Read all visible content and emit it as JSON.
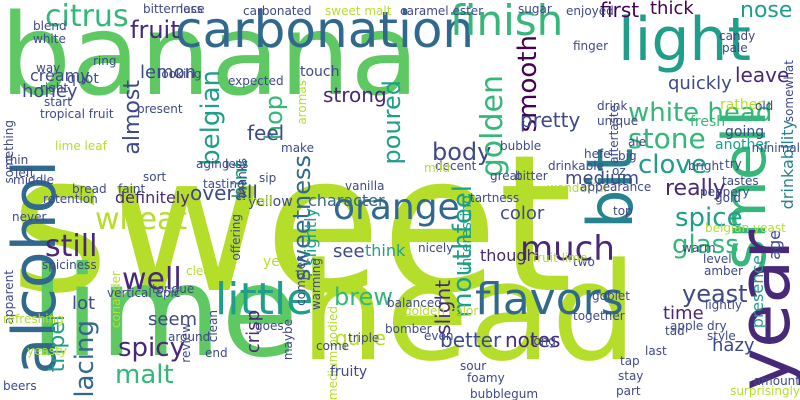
{
  "palette": {
    "lime": "#b5de2b",
    "green": "#5ec962",
    "mid_green": "#35b779",
    "teal": "#1f9e89",
    "cyan": "#26828e",
    "blue": "#31688e",
    "indigo": "#3e4989",
    "purple": "#482878",
    "dark": "#440154"
  },
  "words": [
    {
      "text": "sweet",
      "color": "lime"
    },
    {
      "text": "banana",
      "color": "green"
    },
    {
      "text": "head",
      "color": "lime"
    },
    {
      "text": "lime",
      "color": "green"
    },
    {
      "text": "carbonation",
      "color": "blue"
    },
    {
      "text": "finish",
      "color": "mid_green"
    },
    {
      "text": "light",
      "color": "teal"
    },
    {
      "text": "smell",
      "color": "mid_green"
    },
    {
      "text": "year",
      "color": "purple"
    },
    {
      "text": "bit",
      "color": "cyan"
    },
    {
      "text": "alcohol",
      "color": "blue"
    },
    {
      "text": "little",
      "color": "teal"
    },
    {
      "text": "flavors",
      "color": "blue"
    },
    {
      "text": "citrus",
      "color": "mid_green"
    },
    {
      "text": "fruit",
      "color": "purple"
    },
    {
      "text": "white head",
      "color": "mid_green"
    },
    {
      "text": "nose",
      "color": "teal"
    },
    {
      "text": "first",
      "color": "dark"
    },
    {
      "text": "thick",
      "color": "dark"
    },
    {
      "text": "stone",
      "color": "mid_green"
    },
    {
      "text": "clove",
      "color": "teal"
    },
    {
      "text": "really",
      "color": "purple"
    },
    {
      "text": "spice",
      "color": "teal"
    },
    {
      "text": "glass",
      "color": "mid_green"
    },
    {
      "text": "orange",
      "color": "blue"
    },
    {
      "text": "much",
      "color": "purple"
    },
    {
      "text": "wheat",
      "color": "lime"
    },
    {
      "text": "still",
      "color": "purple"
    },
    {
      "text": "well",
      "color": "purple"
    },
    {
      "text": "spicy",
      "color": "purple"
    },
    {
      "text": "malt",
      "color": "mid_green"
    },
    {
      "text": "lacing",
      "color": "blue"
    },
    {
      "text": "tripel",
      "color": "teal"
    },
    {
      "text": "mouthfeel",
      "color": "teal"
    },
    {
      "text": "brew",
      "color": "mid_green"
    },
    {
      "text": "yeast",
      "color": "indigo"
    },
    {
      "text": "sweetness",
      "color": "blue"
    },
    {
      "text": "body",
      "color": "indigo"
    },
    {
      "text": "golden",
      "color": "mid_green"
    },
    {
      "text": "smooth",
      "color": "dark"
    },
    {
      "text": "poured",
      "color": "teal"
    },
    {
      "text": "strong",
      "color": "purple"
    },
    {
      "text": "hop",
      "color": "mid_green"
    },
    {
      "text": "belgian",
      "color": "teal"
    },
    {
      "text": "almost",
      "color": "indigo"
    },
    {
      "text": "lemon",
      "color": "indigo"
    },
    {
      "text": "honey",
      "color": "indigo"
    },
    {
      "text": "creamy",
      "color": "indigo"
    },
    {
      "text": "feel",
      "color": "indigo"
    },
    {
      "text": "overall",
      "color": "indigo"
    },
    {
      "text": "definitely",
      "color": "purple"
    },
    {
      "text": "hint",
      "color": "teal"
    },
    {
      "text": "lot",
      "color": "indigo"
    },
    {
      "text": "seem",
      "color": "indigo"
    },
    {
      "text": "crisp",
      "color": "purple"
    },
    {
      "text": "quite",
      "color": "lime"
    },
    {
      "text": "better",
      "color": "indigo"
    },
    {
      "text": "notes",
      "color": "purple"
    },
    {
      "text": "slight",
      "color": "purple"
    },
    {
      "text": "time",
      "color": "purple"
    },
    {
      "text": "hazy",
      "color": "indigo"
    },
    {
      "text": "medium",
      "color": "indigo"
    },
    {
      "text": "color",
      "color": "indigo"
    },
    {
      "text": "see",
      "color": "indigo"
    },
    {
      "text": "though",
      "color": "purple"
    },
    {
      "text": "think",
      "color": "teal"
    },
    {
      "text": "slightly",
      "color": "teal"
    },
    {
      "text": "character",
      "color": "blue"
    },
    {
      "text": "pretty",
      "color": "indigo"
    },
    {
      "text": "leave",
      "color": "purple"
    },
    {
      "text": "quickly",
      "color": "indigo"
    },
    {
      "text": "rather",
      "color": "lime"
    },
    {
      "text": "age",
      "color": "indigo"
    },
    {
      "text": "presence",
      "color": "teal"
    },
    {
      "text": "interesting",
      "color": "teal"
    },
    {
      "text": "drinkability",
      "color": "cyan"
    },
    {
      "text": "fresh",
      "color": "mid_green"
    },
    {
      "text": "another",
      "color": "teal"
    },
    {
      "text": "going",
      "color": "indigo"
    },
    {
      "text": "medium bodied",
      "color": "lime"
    },
    {
      "text": "quot",
      "color": "indigo"
    },
    {
      "text": "yet",
      "color": "lime"
    },
    {
      "text": "yellow",
      "color": "indigo"
    },
    {
      "text": "touch",
      "color": "indigo"
    },
    {
      "text": "aromas",
      "color": "lime"
    },
    {
      "text": "looking",
      "color": "indigo"
    },
    {
      "text": "expected",
      "color": "indigo"
    },
    {
      "text": "fruity",
      "color": "indigo"
    },
    {
      "text": "present",
      "color": "indigo"
    },
    {
      "text": "carbonated",
      "color": "indigo"
    },
    {
      "text": "sweet malt",
      "color": "lime"
    },
    {
      "text": "caramel ester",
      "color": "indigo"
    },
    {
      "text": "sugar",
      "color": "indigo"
    },
    {
      "text": "enjoyed",
      "color": "indigo"
    },
    {
      "text": "candy",
      "color": "indigo"
    },
    {
      "text": "pale",
      "color": "indigo"
    },
    {
      "text": "finger",
      "color": "indigo"
    },
    {
      "text": "drink",
      "color": "indigo"
    },
    {
      "text": "unique",
      "color": "indigo"
    },
    {
      "text": "aftertaste",
      "color": "indigo"
    },
    {
      "text": "big",
      "color": "indigo"
    },
    {
      "text": "ale",
      "color": "indigo"
    },
    {
      "text": "old",
      "color": "indigo"
    },
    {
      "text": "bright",
      "color": "indigo"
    },
    {
      "text": "minimal",
      "color": "indigo"
    },
    {
      "text": "try",
      "color": "indigo"
    },
    {
      "text": "tastes",
      "color": "indigo"
    },
    {
      "text": "peppery",
      "color": "indigo"
    },
    {
      "text": "gold",
      "color": "indigo"
    },
    {
      "text": "belgian yeast",
      "color": "lime"
    },
    {
      "text": "warm",
      "color": "indigo"
    },
    {
      "text": "level",
      "color": "indigo"
    },
    {
      "text": "amber",
      "color": "indigo"
    },
    {
      "text": "lightly",
      "color": "indigo"
    },
    {
      "text": "amount",
      "color": "indigo"
    },
    {
      "text": "surprisingly",
      "color": "lime"
    },
    {
      "text": "somewhat",
      "color": "indigo"
    },
    {
      "text": "bitterness",
      "color": "indigo"
    },
    {
      "text": "lace",
      "color": "indigo"
    },
    {
      "text": "blend",
      "color": "indigo"
    },
    {
      "text": "white",
      "color": "indigo"
    },
    {
      "text": "ring",
      "color": "indigo"
    },
    {
      "text": "way",
      "color": "indigo"
    },
    {
      "text": "right",
      "color": "indigo"
    },
    {
      "text": "start",
      "color": "indigo"
    },
    {
      "text": "tropical fruit",
      "color": "indigo"
    },
    {
      "text": "something",
      "color": "indigo"
    },
    {
      "text": "lime leaf",
      "color": "lime"
    },
    {
      "text": "thin",
      "color": "indigo"
    },
    {
      "text": "left",
      "color": "indigo"
    },
    {
      "text": "middle",
      "color": "indigo"
    },
    {
      "text": "bread",
      "color": "indigo"
    },
    {
      "text": "faint",
      "color": "indigo"
    },
    {
      "text": "retention",
      "color": "indigo"
    },
    {
      "text": "never",
      "color": "indigo"
    },
    {
      "text": "sort",
      "color": "indigo"
    },
    {
      "text": "spiciness",
      "color": "indigo"
    },
    {
      "text": "coriander",
      "color": "lime"
    },
    {
      "text": "apparent",
      "color": "indigo"
    },
    {
      "text": "vertical epic",
      "color": "indigo"
    },
    {
      "text": "tongue",
      "color": "indigo"
    },
    {
      "text": "clear",
      "color": "lime"
    },
    {
      "text": "review",
      "color": "indigo"
    },
    {
      "text": "refreshing",
      "color": "lime"
    },
    {
      "text": "clean",
      "color": "indigo"
    },
    {
      "text": "around",
      "color": "indigo"
    },
    {
      "text": "end",
      "color": "indigo"
    },
    {
      "text": "yeasty",
      "color": "lime"
    },
    {
      "text": "beers",
      "color": "indigo"
    },
    {
      "text": "aging",
      "color": "indigo"
    },
    {
      "text": "tasting",
      "color": "indigo"
    },
    {
      "text": "thanks",
      "color": "indigo"
    },
    {
      "text": "make",
      "color": "indigo"
    },
    {
      "text": "less",
      "color": "indigo"
    },
    {
      "text": "sip",
      "color": "indigo"
    },
    {
      "text": "small",
      "color": "lime"
    },
    {
      "text": "offering",
      "color": "indigo"
    },
    {
      "text": "warming",
      "color": "indigo"
    },
    {
      "text": "goes",
      "color": "indigo"
    },
    {
      "text": "maybe",
      "color": "indigo"
    },
    {
      "text": "complex",
      "color": "indigo"
    },
    {
      "text": "vanilla",
      "color": "indigo"
    },
    {
      "text": "decent",
      "color": "indigo"
    },
    {
      "text": "mild",
      "color": "lime"
    },
    {
      "text": "nicely",
      "color": "indigo"
    },
    {
      "text": "triple",
      "color": "indigo"
    },
    {
      "text": "golden color",
      "color": "lime"
    },
    {
      "text": "balanced",
      "color": "indigo"
    },
    {
      "text": "bomber",
      "color": "indigo"
    },
    {
      "text": "even",
      "color": "indigo"
    },
    {
      "text": "come",
      "color": "indigo"
    },
    {
      "text": "long",
      "color": "indigo"
    },
    {
      "text": "sour",
      "color": "indigo"
    },
    {
      "text": "great",
      "color": "indigo"
    },
    {
      "text": "tartness",
      "color": "indigo"
    },
    {
      "text": "bitter",
      "color": "indigo"
    },
    {
      "text": "drinkable",
      "color": "indigo"
    },
    {
      "text": "wonderful",
      "color": "lime"
    },
    {
      "text": "appearance",
      "color": "indigo"
    },
    {
      "text": "hefe",
      "color": "indigo"
    },
    {
      "text": "two",
      "color": "indigo"
    },
    {
      "text": "goblet",
      "color": "indigo"
    },
    {
      "text": "together",
      "color": "indigo"
    },
    {
      "text": "foamy",
      "color": "indigo"
    },
    {
      "text": "bubblegum",
      "color": "indigo"
    },
    {
      "text": "tad",
      "color": "indigo"
    },
    {
      "text": "tap",
      "color": "indigo"
    },
    {
      "text": "stay",
      "color": "indigo"
    },
    {
      "text": "part",
      "color": "indigo"
    },
    {
      "text": "last",
      "color": "indigo"
    },
    {
      "text": "dry",
      "color": "indigo"
    },
    {
      "text": "style",
      "color": "indigo"
    },
    {
      "text": "apple",
      "color": "indigo"
    },
    {
      "text": "bubble",
      "color": "indigo"
    },
    {
      "text": "oz",
      "color": "indigo"
    },
    {
      "text": "top",
      "color": "indigo"
    },
    {
      "text": "fruit lime",
      "color": "lime"
    }
  ]
}
